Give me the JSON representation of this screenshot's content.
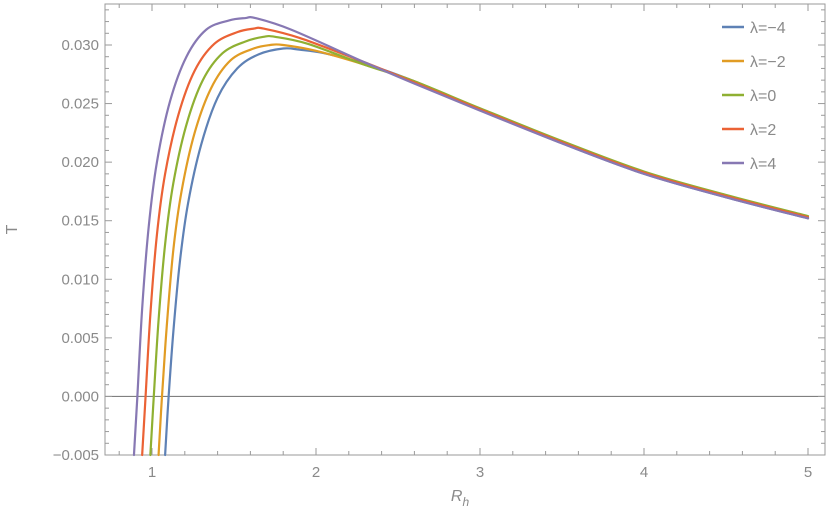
{
  "chart_data": {
    "type": "line",
    "xlabel": "R",
    "xlabel_sub": "h",
    "ylabel": "T",
    "xlim": [
      0.8,
      5.05
    ],
    "ylim": [
      -0.005,
      0.0335
    ],
    "x_ticks": [
      1,
      2,
      3,
      4,
      5
    ],
    "x_tick_labels": [
      "1",
      "2",
      "3",
      "4",
      "5"
    ],
    "y_ticks": [
      -0.005,
      0.0,
      0.005,
      0.01,
      0.015,
      0.02,
      0.025,
      0.03
    ],
    "y_tick_labels": [
      "−0.005",
      "0.000",
      "0.005",
      "0.010",
      "0.015",
      "0.020",
      "0.025",
      "0.030"
    ],
    "grid": false,
    "legend_position": "top-right",
    "series": [
      {
        "name": "λ=−4",
        "color": "#5e81b5",
        "points": [
          [
            1.08,
            -0.005
          ],
          [
            1.1,
            -0.0003
          ],
          [
            1.13,
            0.0055
          ],
          [
            1.17,
            0.0115
          ],
          [
            1.22,
            0.0165
          ],
          [
            1.3,
            0.0215
          ],
          [
            1.4,
            0.0255
          ],
          [
            1.52,
            0.028
          ],
          [
            1.65,
            0.0292
          ],
          [
            1.8,
            0.0297
          ],
          [
            1.9,
            0.0296
          ],
          [
            2.05,
            0.0293
          ],
          [
            2.3,
            0.0284
          ],
          [
            2.6,
            0.0269
          ],
          [
            3.0,
            0.0245
          ],
          [
            3.5,
            0.0216
          ],
          [
            4.0,
            0.019
          ],
          [
            4.5,
            0.017
          ],
          [
            5.0,
            0.0152
          ]
        ]
      },
      {
        "name": "λ=−2",
        "color": "#e19c24",
        "points": [
          [
            1.04,
            -0.005
          ],
          [
            1.06,
            -0.0002
          ],
          [
            1.09,
            0.006
          ],
          [
            1.13,
            0.0125
          ],
          [
            1.18,
            0.0175
          ],
          [
            1.26,
            0.0225
          ],
          [
            1.36,
            0.0263
          ],
          [
            1.48,
            0.0287
          ],
          [
            1.62,
            0.0297
          ],
          [
            1.72,
            0.03
          ],
          [
            1.8,
            0.03
          ],
          [
            2.0,
            0.0295
          ],
          [
            2.3,
            0.0283
          ],
          [
            2.6,
            0.0269
          ],
          [
            3.0,
            0.0245
          ],
          [
            3.5,
            0.0217
          ],
          [
            4.0,
            0.0191
          ],
          [
            4.5,
            0.0171
          ],
          [
            5.0,
            0.0153
          ]
        ]
      },
      {
        "name": "λ=0",
        "color": "#8fb032",
        "points": [
          [
            0.99,
            -0.005
          ],
          [
            1.01,
            -0.0002
          ],
          [
            1.04,
            0.0065
          ],
          [
            1.08,
            0.013
          ],
          [
            1.13,
            0.0182
          ],
          [
            1.21,
            0.0232
          ],
          [
            1.31,
            0.027
          ],
          [
            1.43,
            0.0293
          ],
          [
            1.57,
            0.0303
          ],
          [
            1.68,
            0.0307
          ],
          [
            1.75,
            0.0307
          ],
          [
            1.95,
            0.0301
          ],
          [
            2.3,
            0.0283
          ],
          [
            2.6,
            0.0269
          ],
          [
            3.0,
            0.0246
          ],
          [
            3.5,
            0.0218
          ],
          [
            4.0,
            0.0192
          ],
          [
            4.5,
            0.0172
          ],
          [
            5.0,
            0.0154
          ]
        ]
      },
      {
        "name": "λ=2",
        "color": "#eb6235",
        "points": [
          [
            0.94,
            -0.005
          ],
          [
            0.96,
            -0.0002
          ],
          [
            0.99,
            0.007
          ],
          [
            1.03,
            0.0138
          ],
          [
            1.08,
            0.019
          ],
          [
            1.16,
            0.024
          ],
          [
            1.26,
            0.0278
          ],
          [
            1.38,
            0.0301
          ],
          [
            1.52,
            0.0311
          ],
          [
            1.62,
            0.0314
          ],
          [
            1.68,
            0.0314
          ],
          [
            1.9,
            0.0306
          ],
          [
            2.3,
            0.0285
          ],
          [
            2.6,
            0.0268
          ],
          [
            3.0,
            0.0245
          ],
          [
            3.5,
            0.0217
          ],
          [
            4.0,
            0.0191
          ],
          [
            4.5,
            0.0171
          ],
          [
            5.0,
            0.0153
          ]
        ]
      },
      {
        "name": "λ=4",
        "color": "#8778b3",
        "points": [
          [
            0.89,
            -0.005
          ],
          [
            0.91,
            -0.0002
          ],
          [
            0.94,
            0.0075
          ],
          [
            0.98,
            0.0145
          ],
          [
            1.03,
            0.02
          ],
          [
            1.11,
            0.0252
          ],
          [
            1.21,
            0.029
          ],
          [
            1.33,
            0.0313
          ],
          [
            1.47,
            0.0321
          ],
          [
            1.57,
            0.0323
          ],
          [
            1.63,
            0.0323
          ],
          [
            1.85,
            0.0313
          ],
          [
            2.3,
            0.0285
          ],
          [
            2.6,
            0.0267
          ],
          [
            3.0,
            0.0244
          ],
          [
            3.5,
            0.0216
          ],
          [
            4.0,
            0.019
          ],
          [
            4.5,
            0.017
          ],
          [
            5.0,
            0.0152
          ]
        ]
      }
    ]
  }
}
